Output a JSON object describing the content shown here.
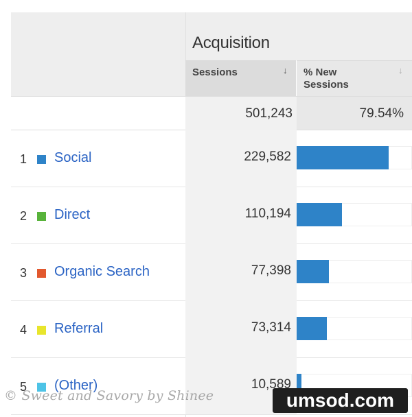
{
  "header": {
    "title": "Acquisition",
    "columns": [
      {
        "label_line1": "Sessions",
        "label_line2": "",
        "sort_icon": "down-arrow"
      },
      {
        "label_line1": "% New",
        "label_line2": "Sessions",
        "sort_icon": "down-arrow"
      }
    ]
  },
  "totals": {
    "sessions": "501,243",
    "pct_new_sessions": "79.54%"
  },
  "rows": [
    {
      "index": "1",
      "channel": "Social",
      "color": "#2e83c8",
      "sessions": "229,582",
      "pct_new_sessions_fraction": 0.8
    },
    {
      "index": "2",
      "channel": "Direct",
      "color": "#58b33b",
      "sessions": "110,194",
      "pct_new_sessions_fraction": 0.39
    },
    {
      "index": "3",
      "channel": "Organic Search",
      "color": "#e2582e",
      "sessions": "77,398",
      "pct_new_sessions_fraction": 0.28
    },
    {
      "index": "4",
      "channel": "Referral",
      "color": "#e8e52c",
      "sessions": "73,314",
      "pct_new_sessions_fraction": 0.26
    },
    {
      "index": "5",
      "channel": "(Other)",
      "color": "#4ec3e6",
      "sessions": "10,589",
      "pct_new_sessions_fraction": 0.04
    }
  ],
  "bar_color": "#2e83c8",
  "watermark": "© Sweet and Savory by Shinee",
  "badge": "umsod.com"
}
